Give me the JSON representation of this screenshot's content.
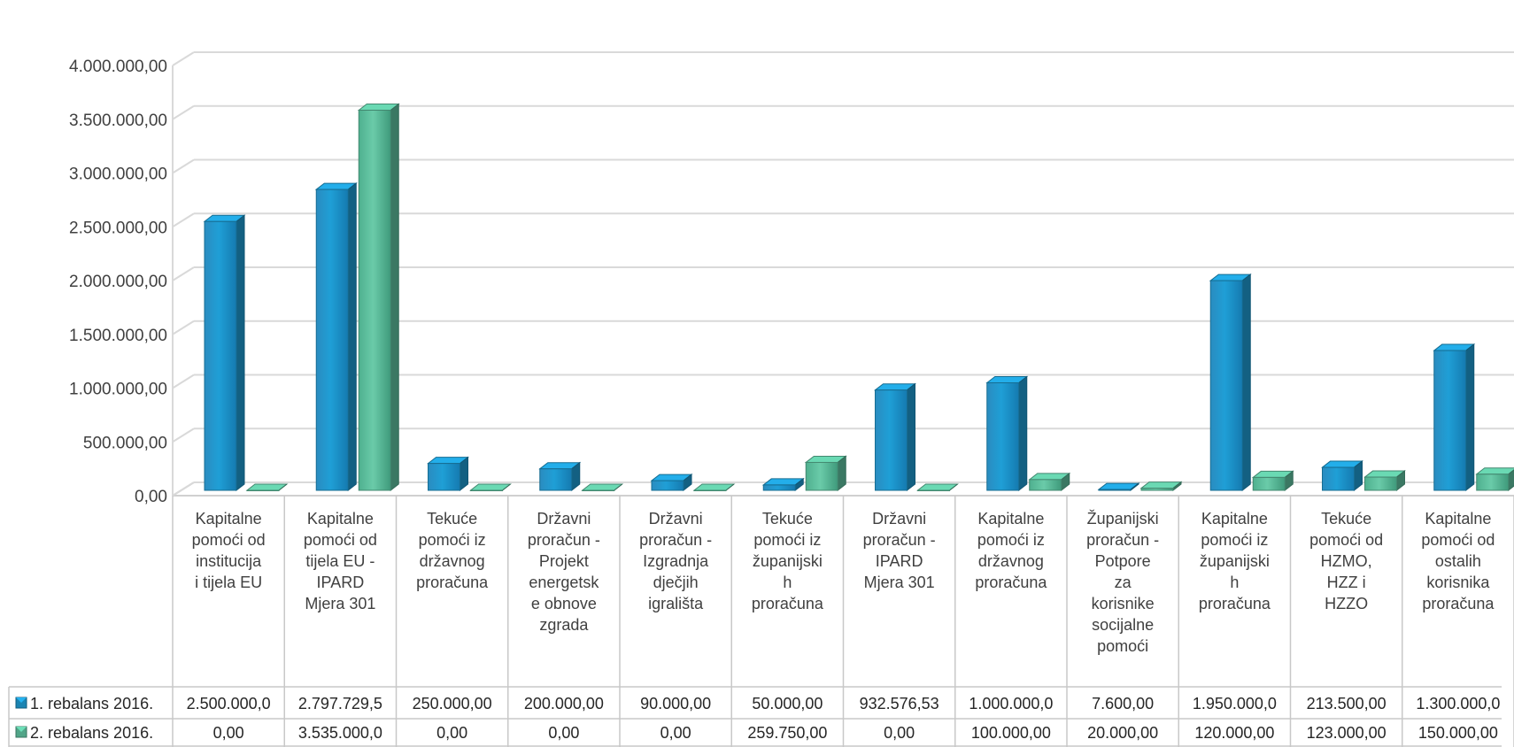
{
  "chart_data": {
    "type": "bar",
    "ylim": [
      0,
      4000000
    ],
    "ytick_step": 500000,
    "ytick_labels": [
      "0,00",
      "500.000,00",
      "1.000.000,00",
      "1.500.000,00",
      "2.000.000,00",
      "2.500.000,00",
      "3.000.000,00",
      "3.500.000,00",
      "4.000.000,00"
    ],
    "grid": true,
    "legend_placement": "data-table-left",
    "categories": [
      [
        "Kapitalne",
        "pomoći od",
        "institucija",
        "i tijela EU"
      ],
      [
        "Kapitalne",
        "pomoći od",
        "tijela EU -",
        "IPARD",
        "Mjera 301"
      ],
      [
        "Tekuće",
        "pomoći iz",
        "državnog",
        "proračuna"
      ],
      [
        "Državni",
        "proračun -",
        "Projekt",
        "energetsk",
        "e obnove",
        "zgrada"
      ],
      [
        "Državni",
        "proračun -",
        "Izgradnja",
        "dječjih",
        "igrališta"
      ],
      [
        "Tekuće",
        "pomoći iz",
        "županijski",
        "h",
        "proračuna"
      ],
      [
        "Državni",
        "proračun -",
        "IPARD",
        "Mjera 301"
      ],
      [
        "Kapitalne",
        "pomoći iz",
        "državnog",
        "proračuna"
      ],
      [
        "Županijski",
        "proračun -",
        "Potpore",
        "za",
        "korisnike",
        "socijalne",
        "pomoći"
      ],
      [
        "Kapitalne",
        "pomoći iz",
        "županijski",
        "h",
        "proračuna"
      ],
      [
        "Tekuće",
        "pomoći od",
        "HZMO,",
        "HZZ i",
        "HZZO"
      ],
      [
        "Kapitalne",
        "pomoći od",
        "ostalih",
        "korisnika",
        "proračuna"
      ]
    ],
    "series": [
      {
        "name": "1. rebalans 2016.",
        "color": "#1f9bd1",
        "values": [
          2500000.0,
          2797729.5,
          250000.0,
          200000.0,
          90000.0,
          50000.0,
          932576.53,
          1000000.0,
          7600.0,
          1950000.0,
          213500.0,
          1300000.0
        ],
        "labels": [
          "2.500.000,0",
          "2.797.729,5",
          "250.000,00",
          "200.000,00",
          "90.000,00",
          "50.000,00",
          "932.576,53",
          "1.000.000,0",
          "7.600,00",
          "1.950.000,0",
          "213.500,00",
          "1.300.000,0"
        ]
      },
      {
        "name": "2. rebalans 2016.",
        "color": "#5fc2a0",
        "values": [
          0.0,
          3535000.0,
          0.0,
          0.0,
          0.0,
          259750.0,
          0.0,
          100000.0,
          20000.0,
          120000.0,
          123000.0,
          150000.0
        ],
        "labels": [
          "0,00",
          "3.535.000,0",
          "0,00",
          "0,00",
          "0,00",
          "259.750,00",
          "0,00",
          "100.000,00",
          "20.000,00",
          "120.000,00",
          "123.000,00",
          "150.000,00"
        ]
      }
    ]
  }
}
